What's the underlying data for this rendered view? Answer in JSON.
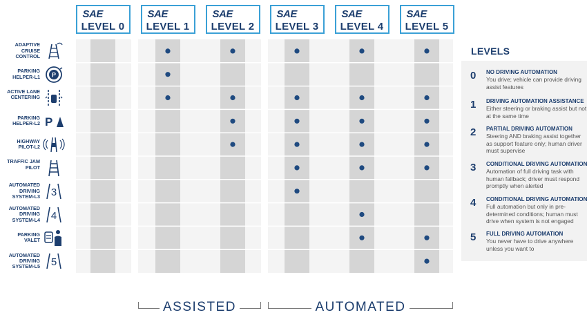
{
  "levels": [
    {
      "sae": "SAE",
      "label": "LEVEL 0"
    },
    {
      "sae": "SAE",
      "label": "LEVEL 1"
    },
    {
      "sae": "SAE",
      "label": "LEVEL 2"
    },
    {
      "sae": "SAE",
      "label": "LEVEL 3"
    },
    {
      "sae": "SAE",
      "label": "LEVEL 4"
    },
    {
      "sae": "SAE",
      "label": "LEVEL 5"
    }
  ],
  "features": [
    {
      "label": "ADAPTIVE CRUISE CONTROL",
      "icon": "adaptive-cruise-icon",
      "levels": [
        1,
        2,
        3,
        4,
        5
      ]
    },
    {
      "label": "PARKING HELPER-L1",
      "icon": "steering-parking-icon",
      "levels": [
        1
      ]
    },
    {
      "label": "ACTIVE LANE CENTERING",
      "icon": "lane-centering-icon",
      "levels": [
        1,
        2,
        3,
        4,
        5
      ]
    },
    {
      "label": "PARKING HELPER-L2",
      "icon": "parking-sign-icon",
      "levels": [
        2,
        3,
        4,
        5
      ]
    },
    {
      "label": "HIGHWAY PILOT-L2",
      "icon": "highway-pilot-icon",
      "levels": [
        2,
        3,
        4,
        5
      ]
    },
    {
      "label": "TRAFFIC JAM PILOT",
      "icon": "traffic-jam-icon",
      "levels": [
        3,
        4,
        5
      ]
    },
    {
      "label": "AUTOMATED DRIVING SYSTEM-L3",
      "icon": "level-3-icon",
      "icon_text": "3",
      "levels": [
        3
      ]
    },
    {
      "label": "AUTOMATED DRIVING SYSTEM-L4",
      "icon": "level-4-icon",
      "icon_text": "4",
      "levels": [
        4
      ]
    },
    {
      "label": "PARKING VALET",
      "icon": "parking-valet-icon",
      "levels": [
        4,
        5
      ]
    },
    {
      "label": "AUTOMATED DRIVING SYSTEM-L5",
      "icon": "level-5-icon",
      "icon_text": "5",
      "levels": [
        5
      ]
    }
  ],
  "groups": [
    {
      "label": "ASSISTED",
      "levels": [
        1,
        2
      ]
    },
    {
      "label": "AUTOMATED",
      "levels": [
        3,
        4,
        5
      ]
    }
  ],
  "legend": {
    "title": "LEVELS",
    "items": [
      {
        "num": "0",
        "name": "NO DRIVING AUTOMATION",
        "desc": "You drive; vehicle can provide driving assist features"
      },
      {
        "num": "1",
        "name": "DRIVING AUTOMATION ASSISTANCE",
        "desc": "Either steering or braking assist but not at the same time"
      },
      {
        "num": "2",
        "name": "PARTIAL DRIVING AUTOMATION",
        "desc": "Steering AND braking assist together as support feature only; human driver must supervise"
      },
      {
        "num": "3",
        "name": "CONDITIONAL DRIVING AUTOMATION",
        "desc": "Automation of full driving task with human fallback; driver must respond promptly when alerted"
      },
      {
        "num": "4",
        "name": "CONDITIONAL DRIVING AUTOMATION",
        "desc": "Full automation but only in pre-determined conditions; human must drive when system is not engaged"
      },
      {
        "num": "5",
        "name": "FULL DRIVING AUTOMATION",
        "desc": "You never have to drive anywhere unless you want to"
      }
    ]
  },
  "colors": {
    "navy": "#1d3e6e",
    "accent": "#3aa0d6",
    "dot": "#1f4a80"
  }
}
